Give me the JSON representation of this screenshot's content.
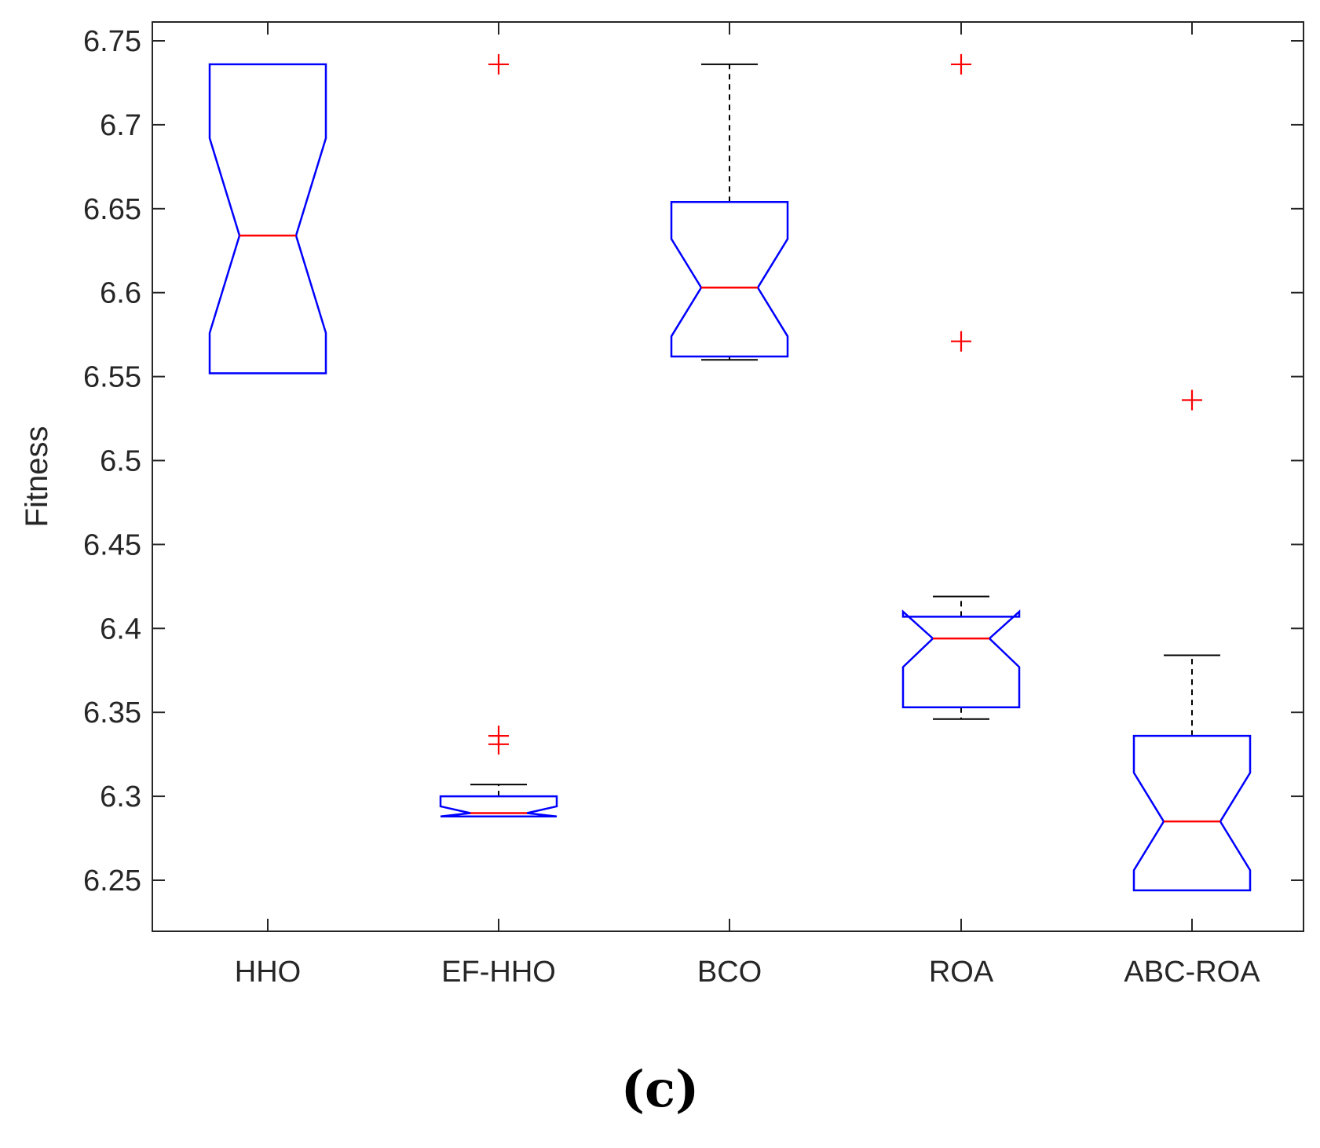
{
  "chart_data": {
    "type": "boxplot",
    "notched": true,
    "title": "",
    "xlabel": "",
    "ylabel": "Fitness",
    "ylim": [
      6.22,
      6.76
    ],
    "yticks": [
      6.25,
      6.3,
      6.35,
      6.4,
      6.45,
      6.5,
      6.55,
      6.6,
      6.65,
      6.7,
      6.75
    ],
    "ytick_labels": [
      "6.25",
      "6.3",
      "6.35",
      "6.4",
      "6.45",
      "6.5",
      "6.55",
      "6.6",
      "6.65",
      "6.7",
      "6.75"
    ],
    "categories": [
      "HHO",
      "EF-HHO",
      "BCO",
      "ROA",
      "ABC-ROA"
    ],
    "series": [
      {
        "name": "HHO",
        "whisker_low": 6.552,
        "q1": 6.552,
        "median": 6.634,
        "q3": 6.736,
        "whisker_high": 6.736,
        "notch_low": 6.576,
        "notch_high": 6.692,
        "outliers": []
      },
      {
        "name": "EF-HHO",
        "whisker_low": 6.288,
        "q1": 6.288,
        "median": 6.29,
        "q3": 6.3,
        "whisker_high": 6.307,
        "notch_low": 6.288,
        "notch_high": 6.294,
        "outliers": [
          6.331,
          6.336,
          6.736
        ]
      },
      {
        "name": "BCO",
        "whisker_low": 6.56,
        "q1": 6.562,
        "median": 6.603,
        "q3": 6.654,
        "whisker_high": 6.736,
        "notch_low": 6.574,
        "notch_high": 6.632,
        "outliers": []
      },
      {
        "name": "ROA",
        "whisker_low": 6.346,
        "q1": 6.353,
        "median": 6.394,
        "q3": 6.407,
        "whisker_high": 6.419,
        "notch_low": 6.377,
        "notch_high": 6.41,
        "outliers": [
          6.571,
          6.736
        ]
      },
      {
        "name": "ABC-ROA",
        "whisker_low": 6.244,
        "q1": 6.244,
        "median": 6.285,
        "q3": 6.336,
        "whisker_high": 6.384,
        "notch_low": 6.256,
        "notch_high": 6.314,
        "outliers": [
          6.536
        ]
      }
    ],
    "colors": {
      "box": "#0000ff",
      "median": "#ff0000",
      "outlier": "#ff0000",
      "whisker": "#000000",
      "axis": "#262626"
    }
  },
  "panel_label": "(c)"
}
